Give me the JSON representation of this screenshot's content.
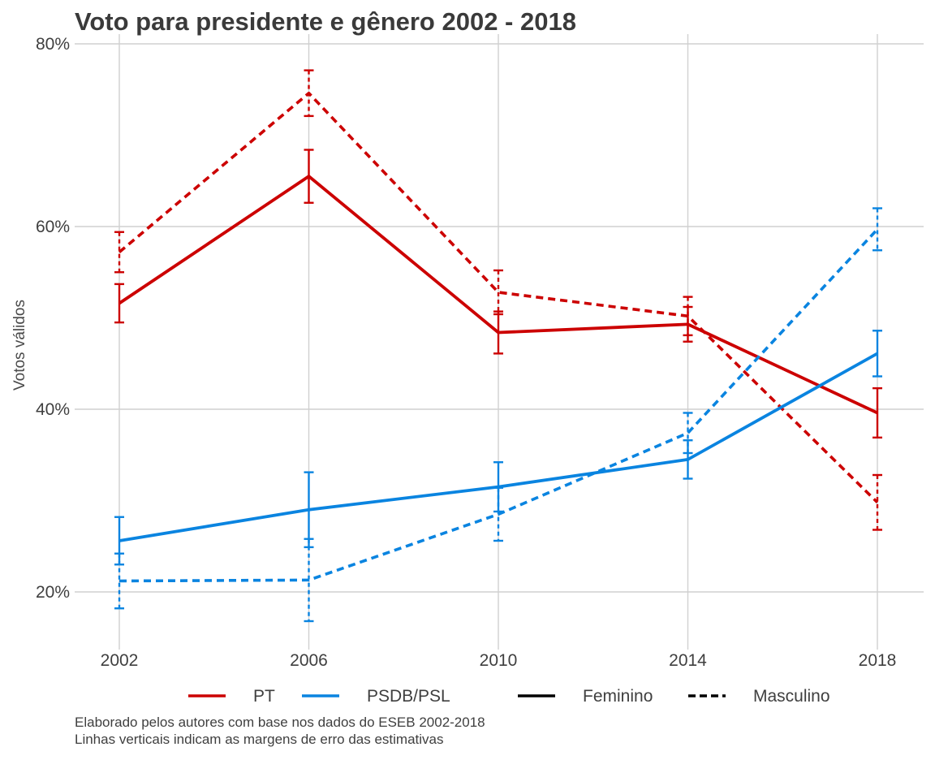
{
  "chart_data": {
    "type": "line",
    "title": "Voto para presidente e gênero 2002 - 2018",
    "xlabel": "",
    "ylabel": "Votos válidos",
    "x": [
      2002,
      2006,
      2010,
      2014,
      2018
    ],
    "x_tick_labels": [
      "2002",
      "2006",
      "2010",
      "2014",
      "2018"
    ],
    "ylim": [
      14,
      80
    ],
    "y_ticks": [
      20,
      40,
      60,
      80
    ],
    "y_tick_labels": [
      "20%",
      "40%",
      "60%",
      "80%"
    ],
    "grid": true,
    "legend_position": "bottom",
    "series": [
      {
        "party": "PT",
        "gender": "Feminino",
        "color": "#cc0000",
        "dash": "solid",
        "values": [
          51.6,
          65.5,
          48.4,
          49.3,
          39.6
        ],
        "lower": [
          49.5,
          62.6,
          46.1,
          47.4,
          36.9
        ],
        "upper": [
          53.7,
          68.4,
          50.7,
          51.2,
          42.3
        ]
      },
      {
        "party": "PT",
        "gender": "Masculino",
        "color": "#cc0000",
        "dash": "dashed",
        "values": [
          57.2,
          74.6,
          52.8,
          50.2,
          29.8
        ],
        "lower": [
          55.0,
          72.1,
          50.4,
          48.1,
          26.8
        ],
        "upper": [
          59.4,
          77.1,
          55.2,
          52.3,
          32.8
        ]
      },
      {
        "party": "PSDB/PSL",
        "gender": "Feminino",
        "color": "#0a84e0",
        "dash": "solid",
        "values": [
          25.6,
          29.0,
          31.5,
          34.5,
          46.1
        ],
        "lower": [
          23.0,
          24.9,
          28.8,
          32.4,
          43.6
        ],
        "upper": [
          28.2,
          33.1,
          34.2,
          36.6,
          48.6
        ]
      },
      {
        "party": "PSDB/PSL",
        "gender": "Masculino",
        "color": "#0a84e0",
        "dash": "dashed",
        "values": [
          21.2,
          21.3,
          28.5,
          37.4,
          59.7
        ],
        "lower": [
          18.2,
          16.8,
          25.6,
          35.2,
          57.4
        ],
        "upper": [
          24.2,
          25.8,
          31.4,
          39.6,
          62.0
        ]
      }
    ],
    "legend": {
      "party": [
        {
          "label": "PT",
          "color": "#cc0000"
        },
        {
          "label": "PSDB/PSL",
          "color": "#0a84e0"
        }
      ],
      "gender": [
        {
          "label": "Feminino",
          "dash": "solid"
        },
        {
          "label": "Masculino",
          "dash": "dashed"
        }
      ]
    },
    "caption": [
      "Elaborado pelos autores com base nos dados do ESEB 2002-2018",
      "Linhas verticais indicam as margens de erro das estimativas"
    ]
  }
}
